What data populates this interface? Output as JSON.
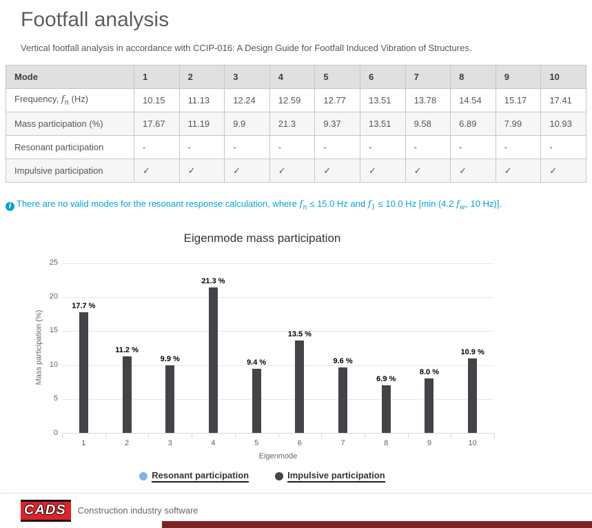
{
  "page": {
    "title": "Footfall analysis",
    "subtitle": "Vertical footfall analysis in accordance with CCIP-016: A Design Guide for Footfall Induced Vibration of Structures."
  },
  "table": {
    "corner_header": "Mode",
    "mode_numbers": [
      "1",
      "2",
      "3",
      "4",
      "5",
      "6",
      "7",
      "8",
      "9",
      "10"
    ],
    "rows": [
      {
        "label_prefix": "Frequency, ",
        "symbol": "f",
        "symbol_sub": "n",
        "label_suffix": " (Hz)",
        "values": [
          "10.15",
          "11.13",
          "12.24",
          "12.59",
          "12.77",
          "13.51",
          "13.78",
          "14.54",
          "15.17",
          "17.41"
        ]
      },
      {
        "label": "Mass participation (%)",
        "values": [
          "17.67",
          "11.19",
          "9.9",
          "21.3",
          "9.37",
          "13.51",
          "9.58",
          "6.89",
          "7.99",
          "10.93"
        ]
      },
      {
        "label": "Resonant participation",
        "values": [
          "-",
          "-",
          "-",
          "-",
          "-",
          "-",
          "-",
          "-",
          "-",
          "-"
        ]
      },
      {
        "label": "Impulsive participation",
        "values": [
          "✓",
          "✓",
          "✓",
          "✓",
          "✓",
          "✓",
          "✓",
          "✓",
          "✓",
          "✓"
        ]
      }
    ]
  },
  "note": {
    "icon": "i",
    "parts": [
      {
        "v": "There are no valid modes for the resonant response calculation, where "
      },
      {
        "v": "f",
        "sub": "n"
      },
      {
        "v": " ≤ 15.0 Hz and "
      },
      {
        "v": "f",
        "sub": "1"
      },
      {
        "v": " ≤ 10.0 Hz [min (4.2 "
      },
      {
        "v": "f",
        "sub": "w"
      },
      {
        "v": ", 10 Hz)]."
      }
    ]
  },
  "chart_data": {
    "type": "bar",
    "title": "Eigenmode mass participation",
    "xlabel": "Eigenmode",
    "ylabel": "Mass participation (%)",
    "categories": [
      "1",
      "2",
      "3",
      "4",
      "5",
      "6",
      "7",
      "8",
      "9",
      "10"
    ],
    "series": [
      {
        "name": "Resonant participation",
        "color": "#7cb5ec",
        "values": [
          0,
          0,
          0,
          0,
          0,
          0,
          0,
          0,
          0,
          0
        ]
      },
      {
        "name": "Impulsive participation",
        "color": "#434348",
        "values": [
          17.7,
          11.2,
          9.9,
          21.3,
          9.4,
          13.5,
          9.6,
          6.9,
          8.0,
          10.9
        ]
      }
    ],
    "data_labels": [
      "17.7 %",
      "11.2 %",
      "9.9 %",
      "21.3 %",
      "9.4 %",
      "13.5 %",
      "9.6 %",
      "6.9 %",
      "8.0 %",
      "10.9 %"
    ],
    "ylim": [
      0,
      25
    ],
    "yticks": [
      0,
      5,
      10,
      15,
      20,
      25
    ],
    "grid": true,
    "legend_position": "bottom"
  },
  "footer": {
    "logo_text": "CADS",
    "tagline": "Construction industry software"
  },
  "colors": {
    "note_blue": "#00a3d9",
    "logo_red": "#e02227",
    "bottom_bar": "#7d2220",
    "bar_dark": "#434348",
    "legend_blue": "#7cb5ec"
  }
}
